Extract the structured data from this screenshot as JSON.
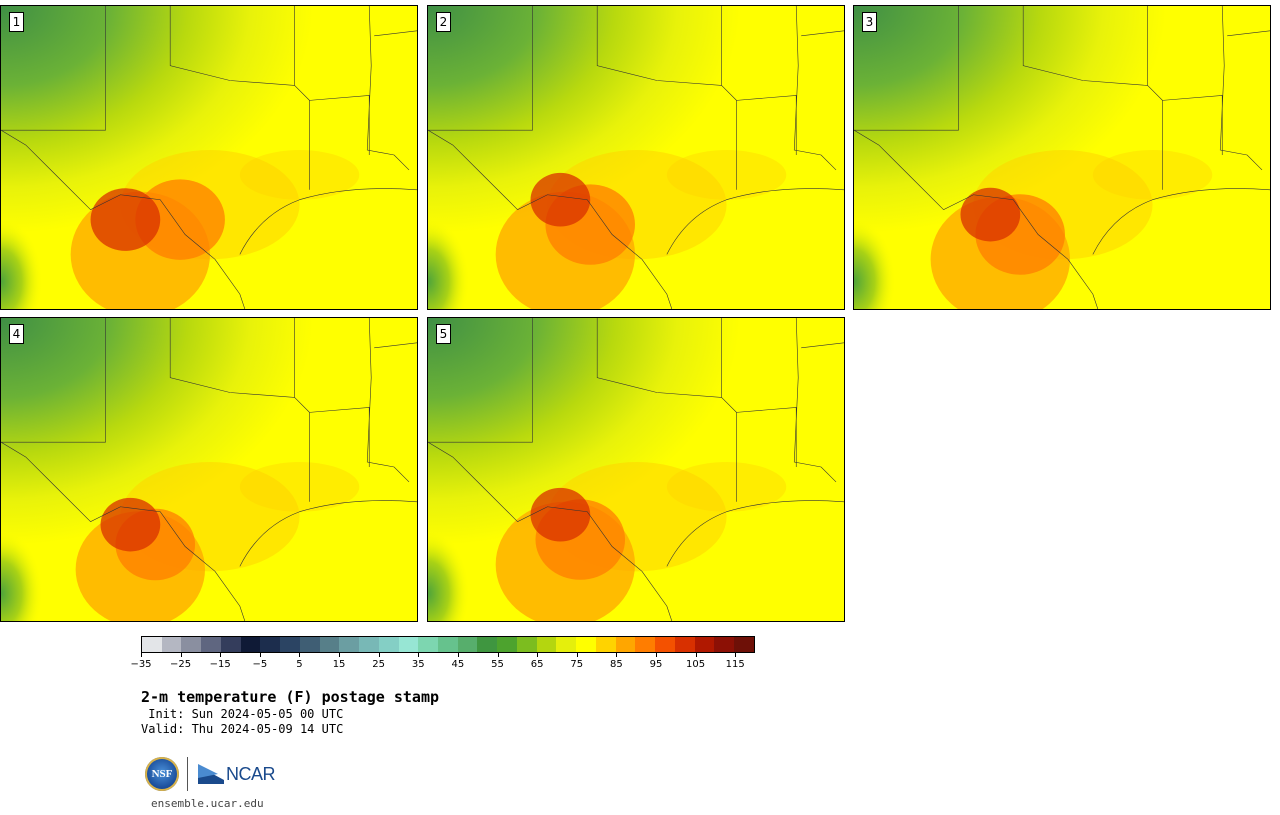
{
  "panels": [
    {
      "label": "1",
      "hot": [
        [
          140,
          255,
          70
        ],
        [
          180,
          220,
          45
        ],
        [
          125,
          220,
          35
        ]
      ]
    },
    {
      "label": "2",
      "hot": [
        [
          565,
          255,
          70
        ],
        [
          590,
          225,
          45
        ],
        [
          560,
          200,
          30
        ]
      ]
    },
    {
      "label": "3",
      "hot": [
        [
          1000,
          260,
          70
        ],
        [
          1020,
          235,
          45
        ],
        [
          990,
          215,
          30
        ]
      ]
    },
    {
      "label": "4",
      "hot": [
        [
          140,
          570,
          65
        ],
        [
          155,
          545,
          40
        ],
        [
          130,
          525,
          30
        ]
      ]
    },
    {
      "label": "5",
      "hot": [
        [
          565,
          565,
          70
        ],
        [
          580,
          540,
          45
        ],
        [
          560,
          515,
          30
        ]
      ]
    }
  ],
  "colorbar": {
    "colors": [
      "#e3e5e8",
      "#b4b7c2",
      "#8a8fa0",
      "#5f6680",
      "#343d5c",
      "#0f1a36",
      "#1c2d4d",
      "#2b4463",
      "#3f5e74",
      "#577f89",
      "#6b9ea2",
      "#78b8b6",
      "#84cfc5",
      "#97e6d4",
      "#7dd6b0",
      "#66c28d",
      "#57ae6c",
      "#3f9640",
      "#4da32e",
      "#7cbd1f",
      "#b4d60f",
      "#e5ef0c",
      "#ffff00",
      "#ffd300",
      "#ffa600",
      "#ff7d00",
      "#f45100",
      "#d83000",
      "#b01800",
      "#8c1005",
      "#6e1007"
    ],
    "tick_labels": [
      "−35",
      "−25",
      "−15",
      "−5",
      "5",
      "15",
      "25",
      "35",
      "45",
      "55",
      "65",
      "75",
      "85",
      "95",
      "105",
      "115"
    ],
    "vmin": -35,
    "vmax": 120
  },
  "title": "2-m temperature (F) postage stamp",
  "init": " Init: Sun 2024-05-05 00 UTC",
  "valid": "Valid: Thu 2024-05-09 14 UTC",
  "logos": {
    "nsf": "NSF",
    "ncar": "NCAR"
  },
  "url": "ensemble.ucar.edu"
}
